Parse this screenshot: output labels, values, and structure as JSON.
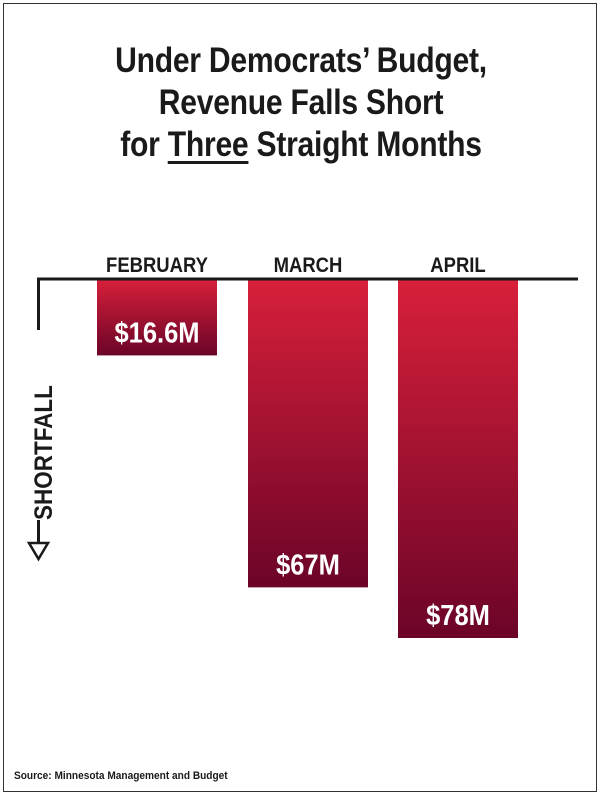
{
  "title": {
    "line1": "Under Democrats’ Budget,",
    "line2": "Revenue Falls Short",
    "line3_before": "for ",
    "line3_emph": "Three",
    "line3_after": " Straight Months"
  },
  "axis_label": "SHORTFALL",
  "source": "Source: Minnesota Management and Budget",
  "colors": {
    "bar_top": "#d8203a",
    "bar_bottom": "#6b0428",
    "axis": "#1a1a1a",
    "value_label": "#ffffff",
    "text": "#1a1a1a"
  },
  "chart_data": {
    "type": "bar",
    "categories": [
      "FEBRUARY",
      "MARCH",
      "APRIL"
    ],
    "values": [
      16.6,
      67,
      78
    ],
    "data_labels": [
      "$16.6M",
      "$67M",
      "$78M"
    ],
    "direction": "downward",
    "grid": false,
    "legend": "none"
  }
}
